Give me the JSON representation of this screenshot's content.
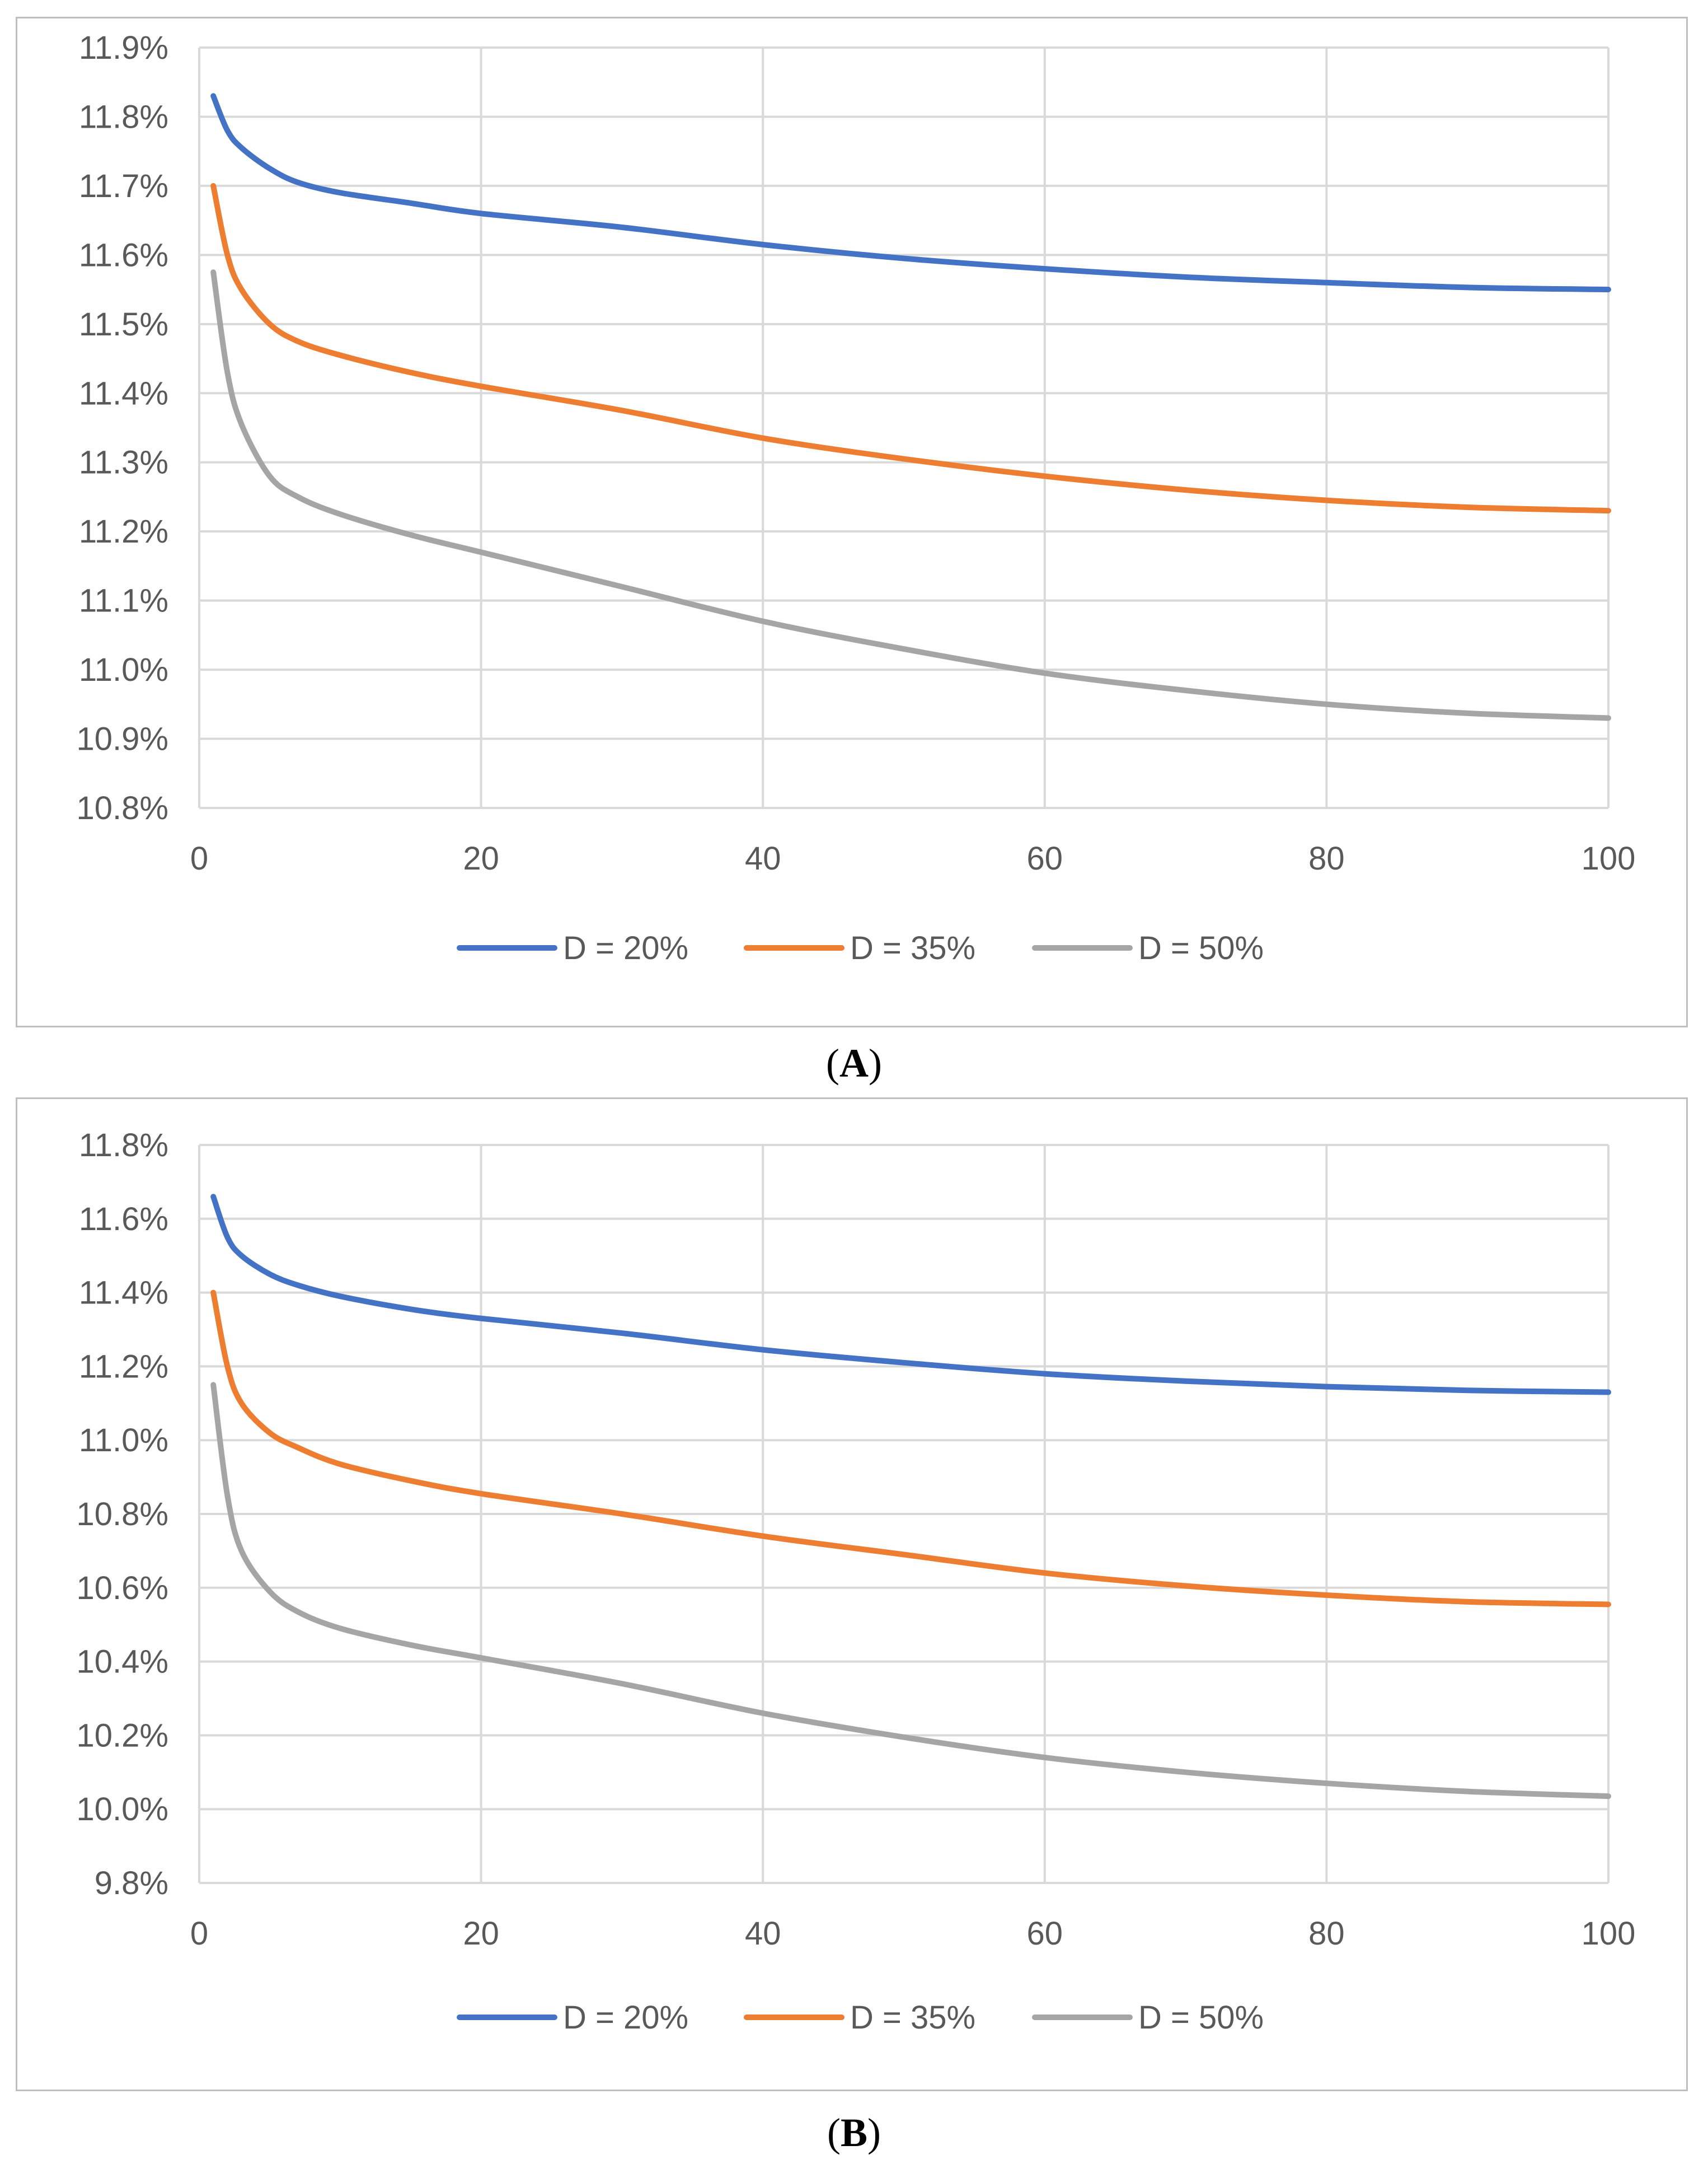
{
  "chart_data": [
    {
      "id": "A",
      "type": "line",
      "caption": "A",
      "x_ticks": [
        "0",
        "20",
        "40",
        "60",
        "80",
        "100"
      ],
      "y_ticks": [
        "10.8%",
        "10.9%",
        "11.0%",
        "11.1%",
        "11.2%",
        "11.3%",
        "11.4%",
        "11.5%",
        "11.6%",
        "11.7%",
        "11.8%",
        "11.9%"
      ],
      "xlim": [
        0,
        100
      ],
      "ylim": [
        10.8,
        11.9
      ],
      "grid": true,
      "legend_position": "bottom",
      "x": [
        1,
        2,
        3,
        5,
        7,
        10,
        15,
        20,
        30,
        40,
        50,
        60,
        70,
        80,
        90,
        100
      ],
      "series": [
        {
          "name": "D = 20%",
          "color": "#4472C4",
          "values": [
            11.83,
            11.78,
            11.755,
            11.725,
            11.705,
            11.69,
            11.675,
            11.66,
            11.64,
            11.615,
            11.595,
            11.58,
            11.568,
            11.56,
            11.553,
            11.55
          ]
        },
        {
          "name": "D = 35%",
          "color": "#ED7D31",
          "values": [
            11.7,
            11.6,
            11.55,
            11.5,
            11.475,
            11.455,
            11.43,
            11.41,
            11.375,
            11.335,
            11.305,
            11.28,
            11.26,
            11.245,
            11.235,
            11.23
          ]
        },
        {
          "name": "D = 50%",
          "color": "#A5A5A5",
          "values": [
            11.575,
            11.43,
            11.355,
            11.28,
            11.25,
            11.225,
            11.195,
            11.17,
            11.12,
            11.07,
            11.03,
            10.995,
            10.97,
            10.95,
            10.937,
            10.93
          ]
        }
      ]
    },
    {
      "id": "B",
      "type": "line",
      "caption": "B",
      "x_ticks": [
        "0",
        "20",
        "40",
        "60",
        "80",
        "100"
      ],
      "y_ticks": [
        "9.8%",
        "10.0%",
        "10.2%",
        "10.4%",
        "10.6%",
        "10.8%",
        "11.0%",
        "11.2%",
        "11.4%",
        "11.6%",
        "11.8%"
      ],
      "xlim": [
        0,
        100
      ],
      "ylim": [
        9.8,
        11.8
      ],
      "grid": true,
      "legend_position": "bottom",
      "x": [
        1,
        2,
        3,
        5,
        7,
        10,
        15,
        20,
        30,
        40,
        50,
        60,
        70,
        80,
        90,
        100
      ],
      "series": [
        {
          "name": "D = 20%",
          "color": "#4472C4",
          "values": [
            11.66,
            11.55,
            11.5,
            11.45,
            11.42,
            11.39,
            11.355,
            11.33,
            11.29,
            11.245,
            11.21,
            11.18,
            11.16,
            11.145,
            11.135,
            11.13
          ]
        },
        {
          "name": "D = 35%",
          "color": "#ED7D31",
          "values": [
            11.4,
            11.2,
            11.1,
            11.02,
            10.98,
            10.935,
            10.89,
            10.855,
            10.8,
            10.74,
            10.69,
            10.64,
            10.605,
            10.58,
            10.562,
            10.555
          ]
        },
        {
          "name": "D = 50%",
          "color": "#A5A5A5",
          "values": [
            11.15,
            10.85,
            10.7,
            10.59,
            10.535,
            10.49,
            10.445,
            10.41,
            10.34,
            10.26,
            10.195,
            10.14,
            10.1,
            10.07,
            10.048,
            10.035
          ]
        }
      ]
    }
  ]
}
